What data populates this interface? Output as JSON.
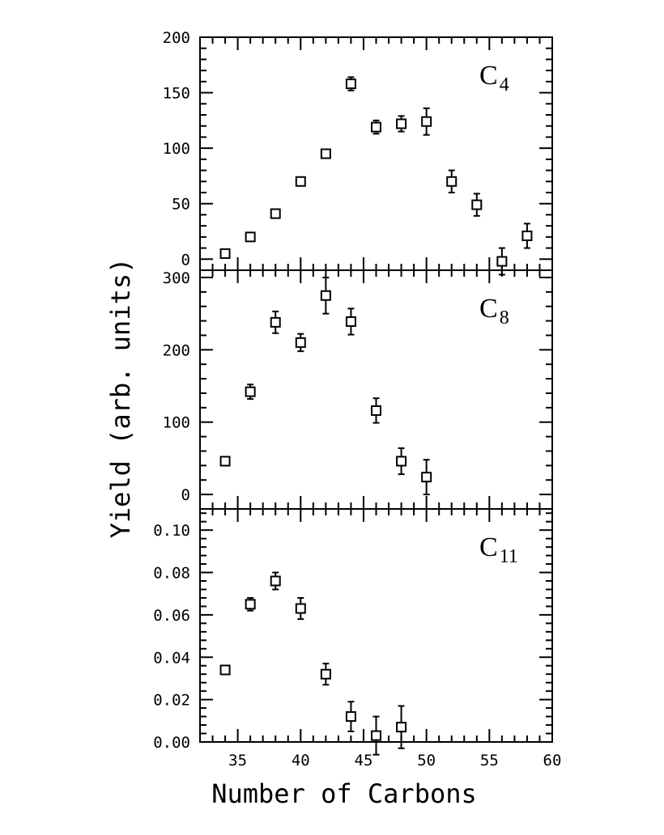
{
  "chart_data": {
    "type": "scatter",
    "xlabel": "Number of Carbons",
    "ylabel": "Yield (arb. units)",
    "xlim": [
      32,
      60
    ],
    "x_ticks": [
      "35",
      "40",
      "45",
      "50",
      "55",
      "60"
    ],
    "x_tick_values": [
      35,
      40,
      45,
      50,
      55,
      60
    ],
    "marker": "open-square",
    "error_bars": true,
    "colors": {
      "ink": "#000000",
      "background": "#ffffff"
    },
    "panels": [
      {
        "label_main": "C",
        "label_sub": "4",
        "ylim": [
          -10,
          200
        ],
        "y_ticks": [
          "0",
          "50",
          "100",
          "150",
          "200"
        ],
        "y_tick_values": [
          0,
          50,
          100,
          150,
          200
        ],
        "points": [
          {
            "x": 34,
            "y": 5,
            "err": 3
          },
          {
            "x": 36,
            "y": 20,
            "err": 3
          },
          {
            "x": 38,
            "y": 41,
            "err": 4
          },
          {
            "x": 40,
            "y": 70,
            "err": 3
          },
          {
            "x": 42,
            "y": 95,
            "err": 4
          },
          {
            "x": 44,
            "y": 158,
            "err": 6
          },
          {
            "x": 46,
            "y": 119,
            "err": 6
          },
          {
            "x": 48,
            "y": 122,
            "err": 7
          },
          {
            "x": 50,
            "y": 124,
            "err": 12
          },
          {
            "x": 52,
            "y": 70,
            "err": 10
          },
          {
            "x": 54,
            "y": 49,
            "err": 10
          },
          {
            "x": 56,
            "y": -2,
            "err": 12
          },
          {
            "x": 58,
            "y": 21,
            "err": 11
          }
        ]
      },
      {
        "label_main": "C",
        "label_sub": "8",
        "ylim": [
          -20,
          310
        ],
        "y_ticks": [
          "0",
          "100",
          "200",
          "300"
        ],
        "y_tick_values": [
          0,
          100,
          200,
          300
        ],
        "points": [
          {
            "x": 34,
            "y": 46,
            "err": 5
          },
          {
            "x": 36,
            "y": 142,
            "err": 10
          },
          {
            "x": 38,
            "y": 238,
            "err": 15
          },
          {
            "x": 40,
            "y": 210,
            "err": 12
          },
          {
            "x": 42,
            "y": 275,
            "err": 25
          },
          {
            "x": 44,
            "y": 239,
            "err": 18
          },
          {
            "x": 46,
            "y": 116,
            "err": 17
          },
          {
            "x": 48,
            "y": 46,
            "err": 18
          },
          {
            "x": 50,
            "y": 24,
            "err": 24
          }
        ]
      },
      {
        "label_main": "C",
        "label_sub": "11",
        "ylim": [
          0,
          0.11
        ],
        "y_ticks": [
          "0.00",
          "0.02",
          "0.04",
          "0.06",
          "0.08",
          "0.10"
        ],
        "y_tick_values": [
          0,
          0.02,
          0.04,
          0.06,
          0.08,
          0.1
        ],
        "points": [
          {
            "x": 34,
            "y": 0.034,
            "err": 0.0015
          },
          {
            "x": 36,
            "y": 0.065,
            "err": 0.003
          },
          {
            "x": 38,
            "y": 0.076,
            "err": 0.004
          },
          {
            "x": 40,
            "y": 0.063,
            "err": 0.005
          },
          {
            "x": 42,
            "y": 0.032,
            "err": 0.005
          },
          {
            "x": 44,
            "y": 0.012,
            "err": 0.007
          },
          {
            "x": 46,
            "y": 0.003,
            "err": 0.009
          },
          {
            "x": 48,
            "y": 0.007,
            "err": 0.01
          }
        ]
      }
    ]
  }
}
